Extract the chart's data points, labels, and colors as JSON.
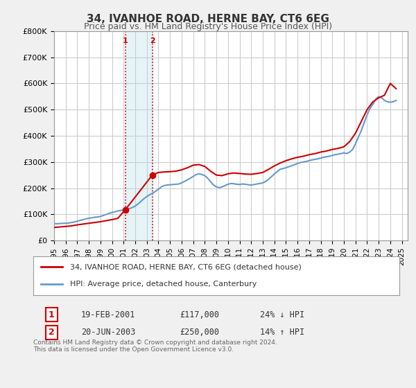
{
  "title": "34, IVANHOE ROAD, HERNE BAY, CT6 6EG",
  "subtitle": "Price paid vs. HM Land Registry's House Price Index (HPI)",
  "ylabel_ticks": [
    "£0",
    "£100K",
    "£200K",
    "£300K",
    "£400K",
    "£500K",
    "£600K",
    "£700K",
    "£800K"
  ],
  "ytick_values": [
    0,
    100000,
    200000,
    300000,
    400000,
    500000,
    600000,
    700000,
    800000
  ],
  "ylim": [
    0,
    800000
  ],
  "xlim_start": 1995.0,
  "xlim_end": 2025.5,
  "background_color": "#f0f0f0",
  "plot_background": "#ffffff",
  "grid_color": "#cccccc",
  "transaction1": {
    "date_num": 2001.13,
    "price": 117000,
    "label": "1",
    "pct": "24% ↓ HPI",
    "date_str": "19-FEB-2001",
    "price_str": "£117,000"
  },
  "transaction2": {
    "date_num": 2003.47,
    "price": 250000,
    "label": "2",
    "pct": "14% ↑ HPI",
    "date_str": "20-JUN-2003",
    "price_str": "£250,000"
  },
  "shade_color": "#add8e6",
  "shade_alpha": 0.3,
  "vline_color": "#cc0000",
  "vline_style": ":",
  "legend_line1": "34, IVANHOE ROAD, HERNE BAY, CT6 6EG (detached house)",
  "legend_line2": "HPI: Average price, detached house, Canterbury",
  "footer": "Contains HM Land Registry data © Crown copyright and database right 2024.\nThis data is licensed under the Open Government Licence v3.0.",
  "red_line_color": "#cc0000",
  "blue_line_color": "#6699cc",
  "hpi_data": {
    "x": [
      1995.0,
      1995.25,
      1995.5,
      1995.75,
      1996.0,
      1996.25,
      1996.5,
      1996.75,
      1997.0,
      1997.25,
      1997.5,
      1997.75,
      1998.0,
      1998.25,
      1998.5,
      1998.75,
      1999.0,
      1999.25,
      1999.5,
      1999.75,
      2000.0,
      2000.25,
      2000.5,
      2000.75,
      2001.0,
      2001.25,
      2001.5,
      2001.75,
      2002.0,
      2002.25,
      2002.5,
      2002.75,
      2003.0,
      2003.25,
      2003.5,
      2003.75,
      2004.0,
      2004.25,
      2004.5,
      2004.75,
      2005.0,
      2005.25,
      2005.5,
      2005.75,
      2006.0,
      2006.25,
      2006.5,
      2006.75,
      2007.0,
      2007.25,
      2007.5,
      2007.75,
      2008.0,
      2008.25,
      2008.5,
      2008.75,
      2009.0,
      2009.25,
      2009.5,
      2009.75,
      2010.0,
      2010.25,
      2010.5,
      2010.75,
      2011.0,
      2011.25,
      2011.5,
      2011.75,
      2012.0,
      2012.25,
      2012.5,
      2012.75,
      2013.0,
      2013.25,
      2013.5,
      2013.75,
      2014.0,
      2014.25,
      2014.5,
      2014.75,
      2015.0,
      2015.25,
      2015.5,
      2015.75,
      2016.0,
      2016.25,
      2016.5,
      2016.75,
      2017.0,
      2017.25,
      2017.5,
      2017.75,
      2018.0,
      2018.25,
      2018.5,
      2018.75,
      2019.0,
      2019.25,
      2019.5,
      2019.75,
      2020.0,
      2020.25,
      2020.5,
      2020.75,
      2021.0,
      2021.25,
      2021.5,
      2021.75,
      2022.0,
      2022.25,
      2022.5,
      2022.75,
      2023.0,
      2023.25,
      2023.5,
      2023.75,
      2024.0,
      2024.25,
      2024.5
    ],
    "y": [
      65000,
      64000,
      65000,
      65500,
      66000,
      67000,
      69000,
      71000,
      74000,
      77000,
      80000,
      83000,
      85000,
      87000,
      89000,
      90000,
      92000,
      96000,
      100000,
      104000,
      107000,
      110000,
      113000,
      115000,
      117000,
      119000,
      122000,
      126000,
      132000,
      140000,
      150000,
      160000,
      168000,
      175000,
      181000,
      188000,
      196000,
      205000,
      210000,
      212000,
      213000,
      214000,
      215000,
      216000,
      220000,
      226000,
      232000,
      238000,
      245000,
      252000,
      255000,
      252000,
      248000,
      238000,
      225000,
      212000,
      205000,
      202000,
      205000,
      210000,
      215000,
      218000,
      217000,
      215000,
      214000,
      216000,
      215000,
      213000,
      212000,
      214000,
      216000,
      218000,
      220000,
      226000,
      234000,
      244000,
      254000,
      264000,
      272000,
      275000,
      278000,
      282000,
      286000,
      290000,
      294000,
      298000,
      300000,
      302000,
      305000,
      308000,
      310000,
      312000,
      315000,
      318000,
      320000,
      322000,
      325000,
      328000,
      330000,
      332000,
      335000,
      332000,
      338000,
      348000,
      370000,
      395000,
      420000,
      450000,
      480000,
      505000,
      520000,
      540000,
      550000,
      545000,
      535000,
      530000,
      528000,
      530000,
      535000
    ]
  },
  "price_data": {
    "x": [
      1995.0,
      1995.5,
      1996.0,
      1996.5,
      1997.0,
      1997.5,
      1998.0,
      1998.5,
      1999.0,
      1999.5,
      2000.0,
      2000.5,
      2001.13,
      2003.47,
      2004.0,
      2004.5,
      2005.0,
      2005.5,
      2006.0,
      2006.5,
      2007.0,
      2007.5,
      2008.0,
      2008.5,
      2009.0,
      2009.5,
      2010.0,
      2010.5,
      2011.0,
      2011.5,
      2012.0,
      2012.5,
      2013.0,
      2013.5,
      2014.0,
      2014.5,
      2015.0,
      2015.5,
      2016.0,
      2016.5,
      2017.0,
      2017.5,
      2018.0,
      2018.5,
      2019.0,
      2019.5,
      2020.0,
      2020.5,
      2021.0,
      2021.5,
      2022.0,
      2022.5,
      2023.0,
      2023.5,
      2024.0,
      2024.5
    ],
    "y": [
      50000,
      52000,
      54000,
      56000,
      60000,
      63000,
      66000,
      69000,
      72000,
      76000,
      80000,
      85000,
      117000,
      250000,
      260000,
      262000,
      263000,
      265000,
      270000,
      278000,
      288000,
      290000,
      283000,
      265000,
      250000,
      248000,
      255000,
      258000,
      256000,
      254000,
      253000,
      256000,
      260000,
      272000,
      285000,
      296000,
      305000,
      312000,
      318000,
      322000,
      328000,
      332000,
      338000,
      342000,
      348000,
      352000,
      358000,
      378000,
      410000,
      455000,
      500000,
      530000,
      545000,
      555000,
      600000,
      580000
    ]
  }
}
